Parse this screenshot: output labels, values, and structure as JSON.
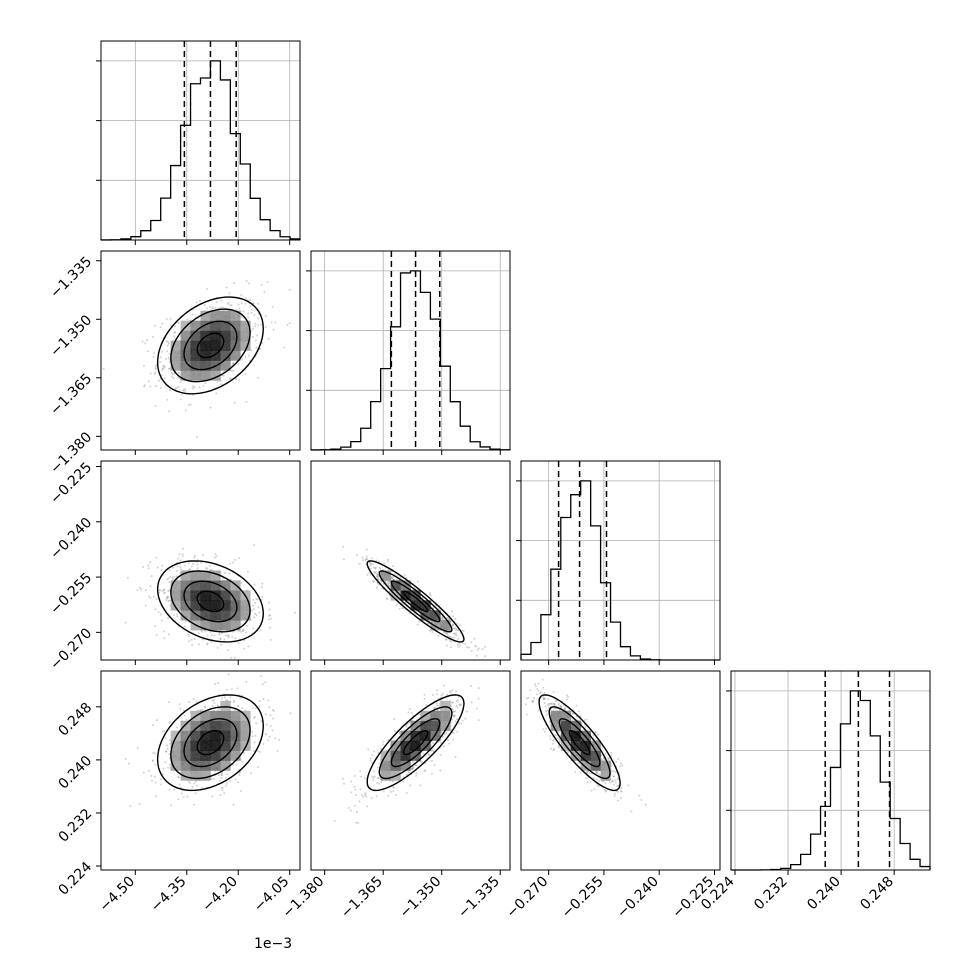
{
  "figure": {
    "offset_label": "1e−3"
  },
  "chart_data": {
    "type": "corner",
    "parameters": [
      {
        "range": [
          -4.6,
          -4.02
        ],
        "ticks": [
          {
            "v": -4.5,
            "label": "−4.50"
          },
          {
            "v": -4.35,
            "label": "−4.35"
          },
          {
            "v": -4.2,
            "label": "−4.20"
          },
          {
            "v": -4.05,
            "label": "−4.05"
          }
        ],
        "mean": -4.281,
        "sigma": 0.077,
        "quantiles": [
          -4.357,
          -4.281,
          -4.206
        ]
      },
      {
        "range": [
          -1.3835,
          -1.3325
        ],
        "ticks": [
          {
            "v": -1.38,
            "label": "−1.380"
          },
          {
            "v": -1.365,
            "label": "−1.365"
          },
          {
            "v": -1.35,
            "label": "−1.350"
          },
          {
            "v": -1.335,
            "label": "−1.335"
          }
        ],
        "mean": -1.3567,
        "sigma": 0.0062,
        "quantiles": [
          -1.3629,
          -1.3567,
          -1.3505
        ]
      },
      {
        "range": [
          -0.2775,
          -0.2235
        ],
        "ticks": [
          {
            "v": -0.27,
            "label": "−0.270"
          },
          {
            "v": -0.255,
            "label": "−0.255"
          },
          {
            "v": -0.24,
            "label": "−0.240"
          },
          {
            "v": -0.225,
            "label": "−0.225"
          }
        ],
        "mean": -0.2616,
        "sigma": 0.0055,
        "quantiles": [
          -0.2673,
          -0.2616,
          -0.2543
        ]
      },
      {
        "range": [
          0.2234,
          0.2534
        ],
        "ticks": [
          {
            "v": 0.224,
            "label": "0.224"
          },
          {
            "v": 0.232,
            "label": "0.232"
          },
          {
            "v": 0.24,
            "label": "0.240"
          },
          {
            "v": 0.248,
            "label": "0.248"
          }
        ],
        "mean": 0.2426,
        "sigma": 0.0036,
        "quantiles": [
          0.2376,
          0.2426,
          0.2473
        ]
      }
    ],
    "correlations": [
      {
        "row": 1,
        "col": 0,
        "r": 0.35
      },
      {
        "row": 2,
        "col": 0,
        "r": -0.3
      },
      {
        "row": 2,
        "col": 1,
        "r": -0.93
      },
      {
        "row": 3,
        "col": 0,
        "r": 0.35
      },
      {
        "row": 3,
        "col": 1,
        "r": 0.82
      },
      {
        "row": 3,
        "col": 2,
        "r": -0.85
      }
    ],
    "histogram_bins": 20,
    "contour_levels": [
      0.5,
      1.0,
      1.5,
      2.0
    ],
    "grid": true,
    "quantile_lines": "dashed"
  }
}
